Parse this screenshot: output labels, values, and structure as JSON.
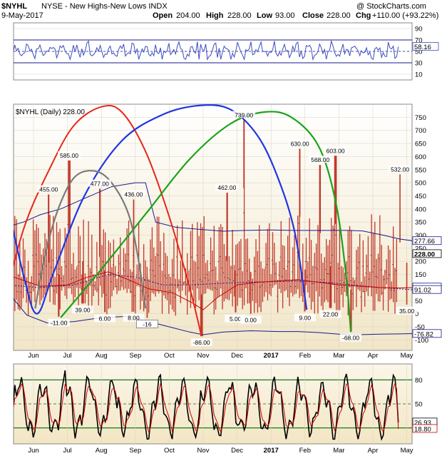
{
  "header": {
    "symbol": "$NYHL",
    "description": "NYSE - New Highs-New Lows INDX",
    "watermark": "@ StockCharts.com",
    "date": "9-May-2017",
    "open_label": "Open",
    "open": "204.00",
    "high_label": "High",
    "high": "228.00",
    "low_label": "Low",
    "low": "93.00",
    "close_label": "Close",
    "close": "228.00",
    "chg_label": "Chg",
    "chg": "+110.00 (+93.22%)"
  },
  "colors": {
    "panel_bg_top": "#ffffff",
    "panel_bg_bottom": "#f3ead0",
    "bars": "#c0392b",
    "ma_red": "#cc0000",
    "ma_navy": "#1a1a8c",
    "rsi_line": "#3a4dbf",
    "arc_red": "#e8261a",
    "arc_blue": "#1e35e6",
    "arc_green": "#1aa31a",
    "arc_gray": "#7a7a7a",
    "stoch_black": "#000000",
    "stoch_red": "#cc0000",
    "label_box": "#ffffff"
  },
  "chart_data": {
    "type": "line",
    "x_months": [
      "Jun",
      "Jul",
      "Aug",
      "Sep",
      "Oct",
      "Nov",
      "Dec",
      "2017",
      "Feb",
      "Mar",
      "Apr",
      "May"
    ],
    "rsi_panel": {
      "ticks": [
        90,
        70,
        50,
        30,
        10
      ],
      "ylim": [
        0,
        100
      ],
      "levels": [
        70,
        30
      ],
      "last_value_label": "58.16",
      "last_value": 58.16
    },
    "main_panel": {
      "legend": "$NYHL (Daily) 228.00",
      "ticks": [
        750,
        700,
        650,
        600,
        550,
        500,
        450,
        400,
        350,
        300,
        250,
        200,
        150,
        100,
        50,
        0,
        -50,
        -100
      ],
      "ylim": [
        -140,
        800
      ],
      "peak_labels": [
        {
          "label": "455.00",
          "month": 0.45,
          "value": 455
        },
        {
          "label": "585.00",
          "month": 1.05,
          "value": 585
        },
        {
          "label": "477.00",
          "month": 1.95,
          "value": 477
        },
        {
          "label": "436.00",
          "month": 2.95,
          "value": 436
        },
        {
          "label": "462.00",
          "month": 5.7,
          "value": 462
        },
        {
          "label": "739.00",
          "month": 6.2,
          "value": 739
        },
        {
          "label": "630.00",
          "month": 7.85,
          "value": 630
        },
        {
          "label": "568.00",
          "month": 8.45,
          "value": 568
        },
        {
          "label": "603.00",
          "month": 8.9,
          "value": 603
        },
        {
          "label": "532.00",
          "month": 10.8,
          "value": 532
        }
      ],
      "trough_labels": [
        {
          "label": "-11.00",
          "month": 0.75,
          "value": -11
        },
        {
          "label": "39.00",
          "month": 1.45,
          "value": 39
        },
        {
          "label": "6.00",
          "month": 2.1,
          "value": 6
        },
        {
          "label": "8.00",
          "month": 2.95,
          "value": 8
        },
        {
          "label": "-16",
          "month": 3.35,
          "value": -16
        },
        {
          "label": "-86.00",
          "month": 4.95,
          "value": -86
        },
        {
          "label": "5.00",
          "month": 5.95,
          "value": 5
        },
        {
          "label": "0.00",
          "month": 6.4,
          "value": 0
        },
        {
          "label": "9.00",
          "month": 8.0,
          "value": 9
        },
        {
          "label": "22.00",
          "month": 8.75,
          "value": 22
        },
        {
          "label": "-68.00",
          "month": 9.35,
          "value": -68
        },
        {
          "label": "35.00",
          "month": 11.0,
          "value": 35
        }
      ],
      "right_labels": [
        {
          "label": "277.66",
          "value": 277.66
        },
        {
          "label": "228.00",
          "value": 228
        },
        {
          "label": "100.42",
          "value": 100.42
        },
        {
          "label": "91.02",
          "value": 91.02
        },
        {
          "label": "-76.82",
          "value": -76.82
        }
      ],
      "upper_band": [
        [
          -0.8,
          330
        ],
        [
          -0.3,
          350
        ],
        [
          0.2,
          378
        ],
        [
          0.8,
          400
        ],
        [
          1.5,
          440
        ],
        [
          2.3,
          485
        ],
        [
          3.0,
          500
        ],
        [
          3.3,
          500
        ],
        [
          3.6,
          350
        ],
        [
          4.2,
          330
        ],
        [
          4.9,
          322
        ],
        [
          5.6,
          315
        ],
        [
          6.2,
          318
        ],
        [
          7.0,
          320
        ],
        [
          7.6,
          318
        ],
        [
          8.2,
          318
        ],
        [
          8.8,
          318
        ],
        [
          9.3,
          318
        ],
        [
          9.7,
          316
        ],
        [
          10.3,
          300
        ],
        [
          10.8,
          285
        ],
        [
          11.2,
          278
        ]
      ],
      "lower_band": [
        [
          -0.8,
          90
        ],
        [
          -0.2,
          -5
        ],
        [
          0.4,
          -35
        ],
        [
          1.2,
          -30
        ],
        [
          2.0,
          -15
        ],
        [
          2.8,
          -10
        ],
        [
          3.4,
          -30
        ],
        [
          4.0,
          -50
        ],
        [
          4.6,
          -70
        ],
        [
          5.0,
          -80
        ],
        [
          5.6,
          -70
        ],
        [
          6.4,
          -65
        ],
        [
          7.2,
          -68
        ],
        [
          7.8,
          -68
        ],
        [
          8.4,
          -72
        ],
        [
          9.0,
          -78
        ],
        [
          9.6,
          -80
        ],
        [
          10.2,
          -78
        ],
        [
          10.8,
          -77
        ],
        [
          11.2,
          -76
        ]
      ],
      "ma_red": [
        [
          -0.8,
          150
        ],
        [
          0.2,
          105
        ],
        [
          1.0,
          110
        ],
        [
          1.6,
          140
        ],
        [
          2.2,
          160
        ],
        [
          2.8,
          130
        ],
        [
          3.4,
          95
        ],
        [
          4.1,
          80
        ],
        [
          4.7,
          40
        ],
        [
          5.0,
          15
        ],
        [
          5.4,
          60
        ],
        [
          6.0,
          110
        ],
        [
          6.6,
          120
        ],
        [
          7.2,
          125
        ],
        [
          7.8,
          130
        ],
        [
          8.4,
          120
        ],
        [
          9.0,
          110
        ],
        [
          9.6,
          105
        ],
        [
          10.2,
          100
        ],
        [
          10.8,
          98
        ],
        [
          11.2,
          100
        ]
      ],
      "ma_navy_mid": [
        [
          -0.8,
          110
        ],
        [
          0.2,
          100
        ],
        [
          1.2,
          110
        ],
        [
          2.2,
          150
        ],
        [
          3.0,
          140
        ],
        [
          3.8,
          110
        ],
        [
          4.6,
          110
        ],
        [
          5.4,
          115
        ],
        [
          6.2,
          120
        ],
        [
          7.0,
          122
        ],
        [
          7.8,
          125
        ],
        [
          8.6,
          120
        ],
        [
          9.4,
          110
        ],
        [
          10.2,
          100
        ],
        [
          11.2,
          91
        ]
      ],
      "arcs": [
        {
          "name": "red",
          "points": [
            [
              -1.0,
              -30
            ],
            [
              -0.3,
              320
            ],
            [
              0.5,
              560
            ],
            [
              1.2,
              720
            ],
            [
              2.0,
              790
            ],
            [
              2.6,
              770
            ],
            [
              3.3,
              620
            ],
            [
              4.0,
              370
            ],
            [
              4.6,
              100
            ],
            [
              4.95,
              -85
            ]
          ]
        },
        {
          "name": "blue",
          "points": [
            [
              -0.8,
              440
            ],
            [
              -0.3,
              150
            ],
            [
              0.1,
              0
            ],
            [
              0.6,
              160
            ],
            [
              1.5,
              450
            ],
            [
              2.6,
              660
            ],
            [
              3.8,
              760
            ],
            [
              4.9,
              795
            ],
            [
              5.8,
              780
            ],
            [
              6.6,
              680
            ],
            [
              7.2,
              520
            ],
            [
              7.7,
              310
            ],
            [
              8.05,
              15
            ]
          ]
        },
        {
          "name": "green",
          "points": [
            [
              0.8,
              -15
            ],
            [
              2.0,
              170
            ],
            [
              3.3,
              380
            ],
            [
              4.6,
              590
            ],
            [
              5.8,
              725
            ],
            [
              6.8,
              770
            ],
            [
              7.6,
              750
            ],
            [
              8.4,
              640
            ],
            [
              8.9,
              430
            ],
            [
              9.2,
              160
            ],
            [
              9.35,
              -70
            ]
          ]
        },
        {
          "name": "gray",
          "points": [
            [
              0.05,
              20
            ],
            [
              0.3,
              200
            ],
            [
              0.7,
              390
            ],
            [
              1.2,
              520
            ],
            [
              1.8,
              545
            ],
            [
              2.3,
              500
            ],
            [
              2.8,
              380
            ],
            [
              3.1,
              200
            ],
            [
              3.3,
              20
            ]
          ]
        }
      ]
    },
    "stoch_panel": {
      "ticks": [
        80,
        50,
        20
      ],
      "ylim": [
        0,
        100
      ],
      "levels": [
        80,
        50,
        20
      ],
      "last_value_labels": [
        "26.93",
        "18.80"
      ],
      "k_last": 26.93,
      "d_last": 18.8
    }
  }
}
